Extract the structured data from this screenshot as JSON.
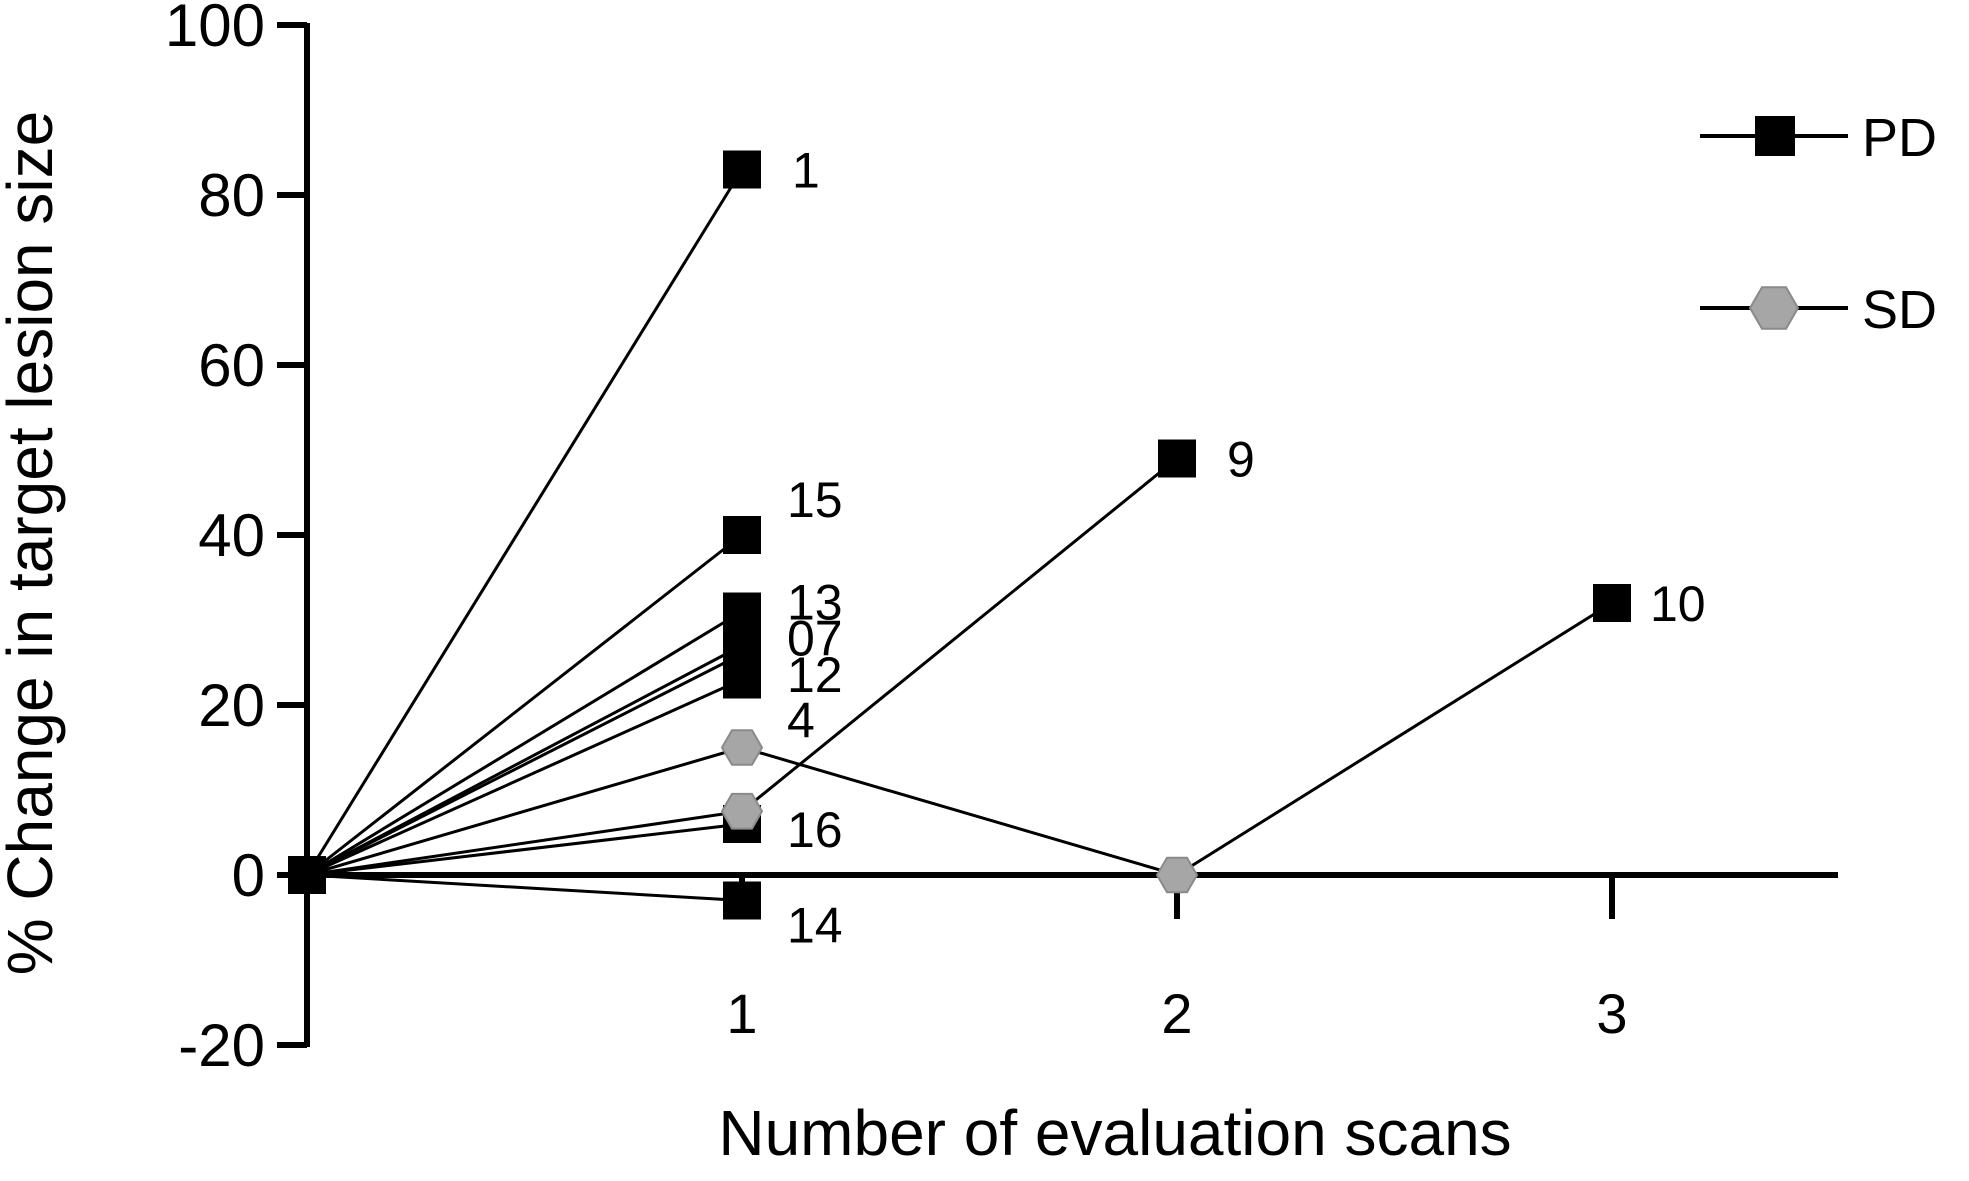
{
  "chart_data": {
    "type": "line",
    "xlabel": "Number of evaluation scans",
    "ylabel": "% Change in target lesion size",
    "xlim": [
      0,
      3.5
    ],
    "ylim": [
      -20,
      100
    ],
    "x_ticks": [
      "1",
      "2",
      "3"
    ],
    "y_ticks": [
      "-20",
      "0",
      "20",
      "40",
      "60",
      "80",
      "100"
    ],
    "legend": {
      "placement": "top-right",
      "entries": [
        {
          "label": "PD",
          "marker": "square",
          "color": "#000000"
        },
        {
          "label": "SD",
          "marker": "hexagon",
          "color": "#a6a6a6"
        }
      ]
    },
    "series": [
      {
        "label": "1",
        "status": "PD",
        "points": [
          [
            0,
            0
          ],
          [
            1,
            83
          ]
        ]
      },
      {
        "label": "15",
        "status": "PD",
        "points": [
          [
            0,
            0
          ],
          [
            1,
            40
          ]
        ]
      },
      {
        "label": "13",
        "status": "PD",
        "points": [
          [
            0,
            0
          ],
          [
            1,
            31
          ]
        ]
      },
      {
        "label": "07",
        "status": "PD",
        "points": [
          [
            0,
            0
          ],
          [
            1,
            27
          ]
        ]
      },
      {
        "label": "12",
        "status": "PD",
        "points": [
          [
            0,
            0
          ],
          [
            1,
            26
          ]
        ]
      },
      {
        "label": "4",
        "status": "PD",
        "points": [
          [
            0,
            0
          ],
          [
            1,
            23
          ]
        ]
      },
      {
        "label": "16",
        "status": "PD",
        "points": [
          [
            0,
            0
          ],
          [
            1,
            6
          ]
        ]
      },
      {
        "label": "14",
        "status": "PD",
        "points": [
          [
            0,
            0
          ],
          [
            1,
            -3
          ]
        ]
      },
      {
        "label": "9",
        "status": "PD",
        "points": [
          [
            0,
            0
          ],
          [
            1,
            7.5
          ],
          [
            2,
            49
          ]
        ]
      },
      {
        "label": "10",
        "status": "PD",
        "points": [
          [
            0,
            0
          ],
          [
            1,
            15
          ],
          [
            2,
            0
          ],
          [
            3,
            32
          ]
        ]
      }
    ],
    "sd_points": [
      [
        1,
        15
      ],
      [
        1,
        7.5
      ],
      [
        2,
        0
      ]
    ],
    "baseline_marker": {
      "x": 0,
      "y": 0,
      "marker": "square"
    }
  }
}
